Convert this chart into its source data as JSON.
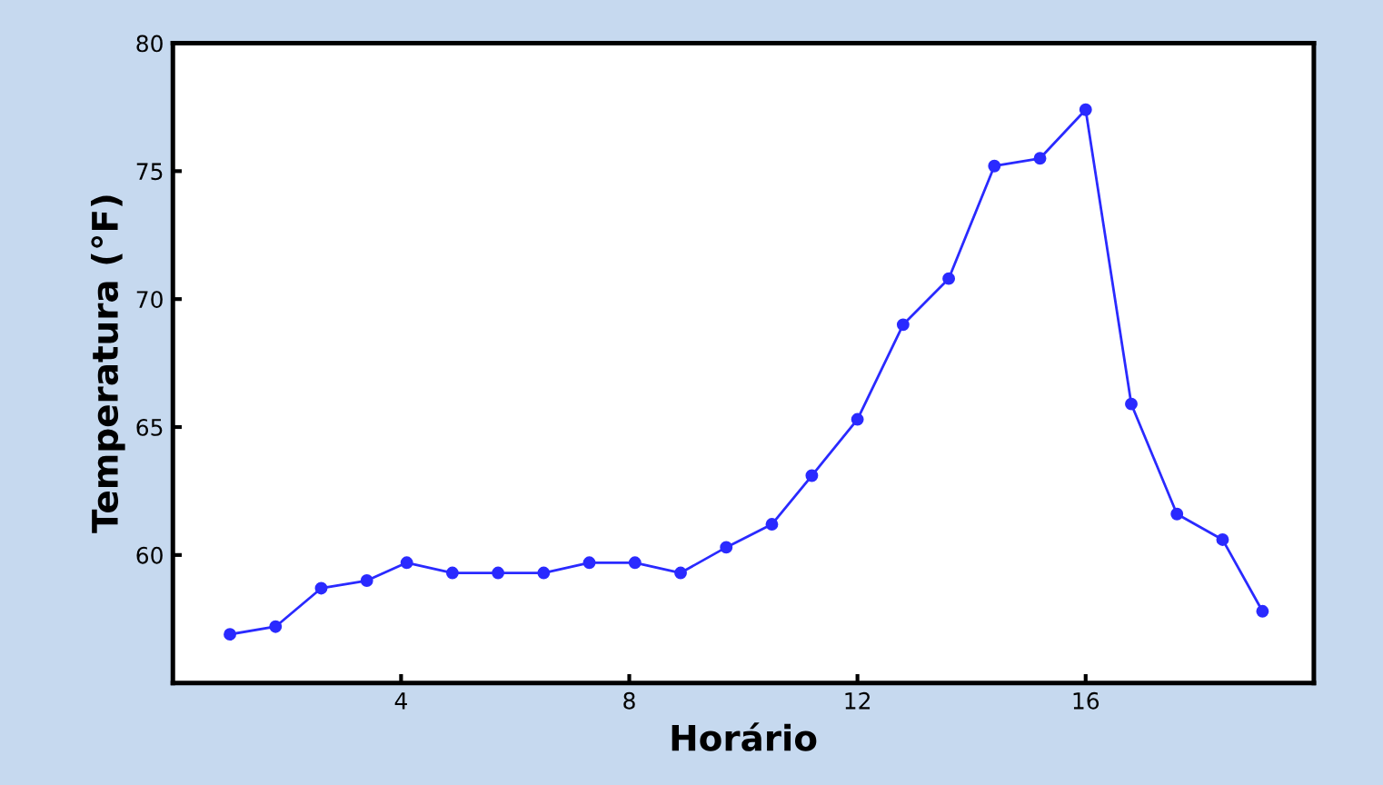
{
  "chart_data": {
    "type": "line",
    "xlabel": "Horário",
    "ylabel": "Temperatura (°F)",
    "x": [
      1.0,
      1.8,
      2.6,
      3.4,
      4.1,
      4.9,
      5.7,
      6.5,
      7.3,
      8.1,
      8.9,
      9.7,
      10.5,
      11.2,
      12.0,
      12.8,
      13.6,
      14.4,
      15.2,
      16.0,
      16.8,
      17.6,
      18.4,
      19.1
    ],
    "series": [
      {
        "color": "#2a2aff",
        "values": [
          56.9,
          57.2,
          58.7,
          59.0,
          59.7,
          59.3,
          59.3,
          59.3,
          59.7,
          59.7,
          59.3,
          60.3,
          61.2,
          63.1,
          65.3,
          69.0,
          70.8,
          75.2,
          75.5,
          77.4,
          65.9,
          61.6,
          60.6,
          57.8
        ]
      }
    ],
    "xlim": [
      0,
      20
    ],
    "xticks": [
      4,
      8,
      12,
      16
    ],
    "ylim": [
      55,
      80
    ],
    "yticks": [
      60,
      65,
      70,
      75,
      80
    ],
    "grid": false,
    "legend": false,
    "marker": "circle",
    "line_style": "solid"
  }
}
